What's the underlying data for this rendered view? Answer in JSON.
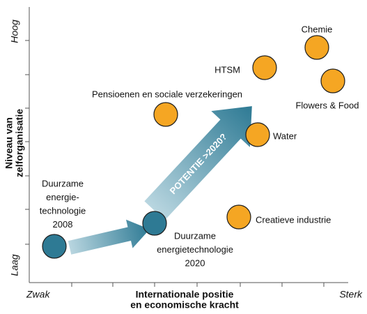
{
  "axes": {
    "y_title": [
      "Niveau van",
      "zelforganisatie"
    ],
    "y_high": "Hoog",
    "y_low": "Laag",
    "x_title": [
      "Internationale positie",
      "en economische kracht"
    ],
    "x_low": "Zwak",
    "x_high": "Sterk"
  },
  "arrow_label": "POTENTIE >2020?",
  "nodes": [
    {
      "label": [
        "Chemie"
      ],
      "kind": "sector"
    },
    {
      "label": [
        "HTSM"
      ],
      "kind": "sector"
    },
    {
      "label": [
        "Flowers & Food"
      ],
      "kind": "sector"
    },
    {
      "label": [
        "Pensioenen en sociale verzekeringen"
      ],
      "kind": "sector"
    },
    {
      "label": [
        "Water"
      ],
      "kind": "sector"
    },
    {
      "label": [
        "Creatieve industrie"
      ],
      "kind": "sector"
    },
    {
      "label": [
        "Duurzame",
        "energie-",
        "technologie",
        "2008"
      ],
      "kind": "energy"
    },
    {
      "label": [
        "Duurzame",
        "energietechnologie",
        "2020"
      ],
      "kind": "energy"
    }
  ]
}
